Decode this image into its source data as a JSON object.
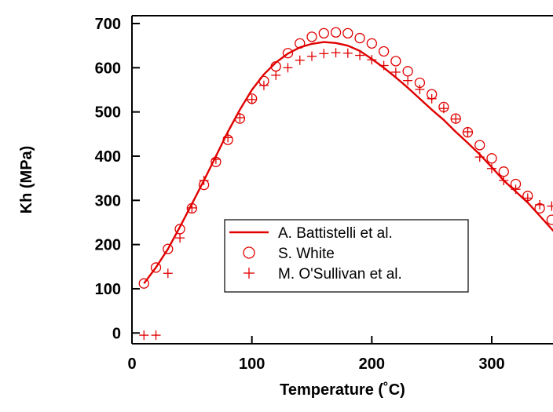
{
  "colors": {
    "series": "#e00000",
    "axis": "#000000"
  },
  "chart_data": {
    "type": "scatter",
    "xlabel": "Temperature (˚C)",
    "ylabel": "Kh (MPa)",
    "xlim": [
      0,
      355
    ],
    "ylim": [
      -30,
      715
    ],
    "xticks": [
      0,
      100,
      200,
      300
    ],
    "yticks": [
      0,
      100,
      200,
      300,
      400,
      500,
      600,
      700
    ],
    "grid": false,
    "legend_position": "lower-center",
    "series": [
      {
        "name": "A. Battistelli et al.",
        "marker": "line",
        "x": [
          10,
          20,
          30,
          40,
          50,
          60,
          70,
          80,
          90,
          100,
          110,
          120,
          130,
          140,
          150,
          160,
          170,
          180,
          190,
          200,
          210,
          220,
          230,
          240,
          250,
          260,
          270,
          280,
          290,
          300,
          310,
          320,
          330,
          340,
          355
        ],
        "y": [
          112,
          148,
          190,
          240,
          292,
          345,
          400,
          455,
          505,
          550,
          585,
          612,
          632,
          646,
          654,
          658,
          656,
          650,
          638,
          620,
          600,
          578,
          555,
          530,
          505,
          482,
          455,
          430,
          404,
          375,
          345,
          320,
          295,
          265,
          220
        ]
      },
      {
        "name": "S. White",
        "marker": "circle",
        "x": [
          10,
          20,
          30,
          40,
          50,
          60,
          70,
          80,
          90,
          100,
          110,
          120,
          130,
          140,
          150,
          160,
          170,
          180,
          190,
          200,
          210,
          220,
          230,
          240,
          250,
          260,
          270,
          280,
          290,
          300,
          310,
          320,
          330,
          340,
          350
        ],
        "y": [
          112,
          148,
          190,
          235,
          282,
          335,
          387,
          437,
          485,
          530,
          570,
          603,
          633,
          655,
          670,
          678,
          680,
          678,
          667,
          655,
          637,
          615,
          592,
          566,
          540,
          511,
          485,
          454,
          425,
          395,
          365,
          337,
          310,
          282,
          256
        ]
      },
      {
        "name": "M. O'Sullivan et al.",
        "marker": "plus",
        "x": [
          10,
          20,
          30,
          40,
          50,
          60,
          70,
          80,
          90,
          100,
          110,
          120,
          130,
          140,
          150,
          160,
          170,
          180,
          190,
          200,
          210,
          220,
          230,
          240,
          250,
          260,
          270,
          280,
          290,
          300,
          310,
          320,
          330,
          340,
          350
        ],
        "y": [
          -5,
          -5,
          135,
          215,
          283,
          345,
          393,
          442,
          487,
          528,
          560,
          583,
          600,
          617,
          626,
          632,
          634,
          633,
          628,
          618,
          605,
          590,
          571,
          551,
          530,
          508,
          484,
          455,
          398,
          372,
          345,
          325,
          305,
          290,
          287
        ]
      }
    ]
  }
}
